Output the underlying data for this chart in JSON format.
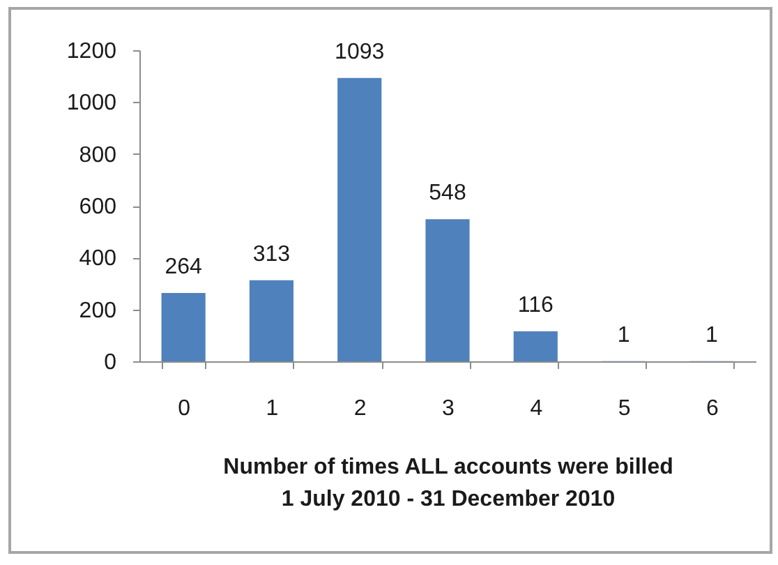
{
  "chart_data": {
    "type": "bar",
    "xlabel": "Number of times ALL accounts were billed\n1 July 2010 - 31 December 2010",
    "categories": [
      "0",
      "1",
      "2",
      "3",
      "4",
      "5",
      "6"
    ],
    "values": [
      264,
      313,
      1093,
      548,
      116,
      1,
      1
    ],
    "color": "#4f81bd",
    "ylim": [
      0,
      1200
    ],
    "yticks": [
      0,
      200,
      400,
      600,
      800,
      1000,
      1200
    ],
    "data_labels": true,
    "grid": false
  }
}
